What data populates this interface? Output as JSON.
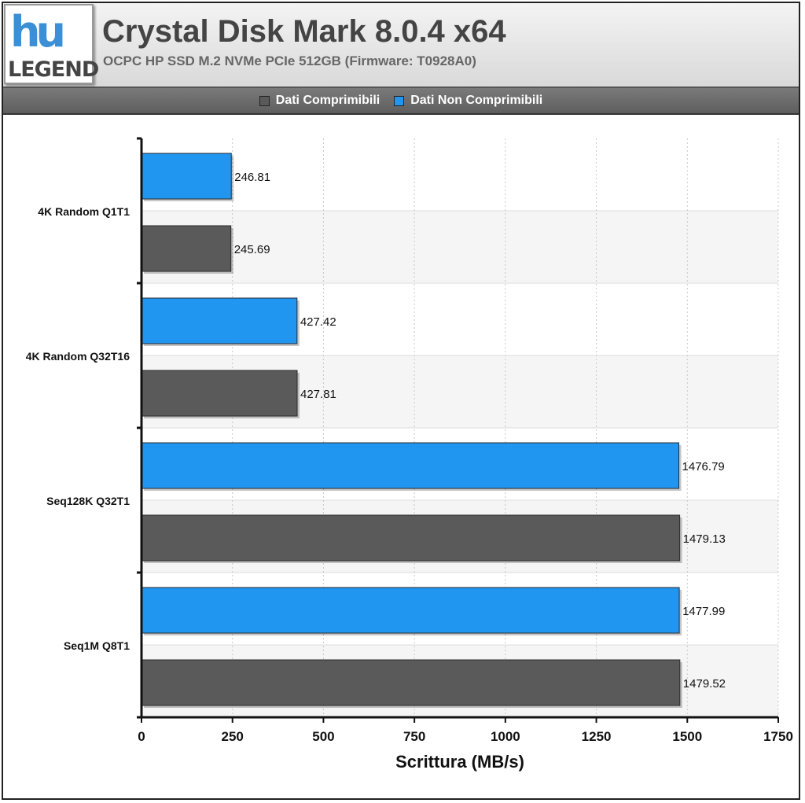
{
  "header": {
    "logo_top": "hu",
    "logo_bottom": "LEGEND",
    "title": "Crystal Disk Mark 8.0.4 x64",
    "subtitle": "OCPC HP SSD M.2 NVMe PCIe 512GB (Firmware: T0928A0)"
  },
  "legend": {
    "items": [
      {
        "label": "Dati Comprimibili",
        "color": "#5a5a5a"
      },
      {
        "label": "Dati Non Comprimibili",
        "color": "#2196f0"
      }
    ]
  },
  "chart_data": {
    "type": "bar",
    "orientation": "horizontal",
    "title": "Crystal Disk Mark 8.0.4 x64",
    "subtitle": "OCPC HP SSD M.2 NVMe PCIe 512GB (Firmware: T0928A0)",
    "xlabel": "Scrittura (MB/s)",
    "ylabel": "",
    "xlim": [
      0,
      1750
    ],
    "xticks": [
      0,
      250,
      500,
      750,
      1000,
      1250,
      1500,
      1750
    ],
    "xtick_labels": [
      "0",
      "250",
      "500",
      "750",
      "1000",
      "1250",
      "1500",
      "1750"
    ],
    "grid": true,
    "legend_position": "top",
    "categories": [
      "4K Random Q1T1",
      "4K Random Q32T16",
      "Seq128K Q32T1",
      "Seq1M Q8T1"
    ],
    "series": [
      {
        "name": "Dati Non Comprimibili",
        "color": "#2196f0",
        "values": [
          246.81,
          427.42,
          1476.79,
          1477.99
        ],
        "labels": [
          "246.81",
          "427.42",
          "1476.79",
          "1477.99"
        ]
      },
      {
        "name": "Dati Comprimibili",
        "color": "#5a5a5a",
        "values": [
          245.69,
          427.81,
          1479.13,
          1479.52
        ],
        "labels": [
          "245.69",
          "427.81",
          "1479.13",
          "1479.52"
        ]
      }
    ]
  }
}
